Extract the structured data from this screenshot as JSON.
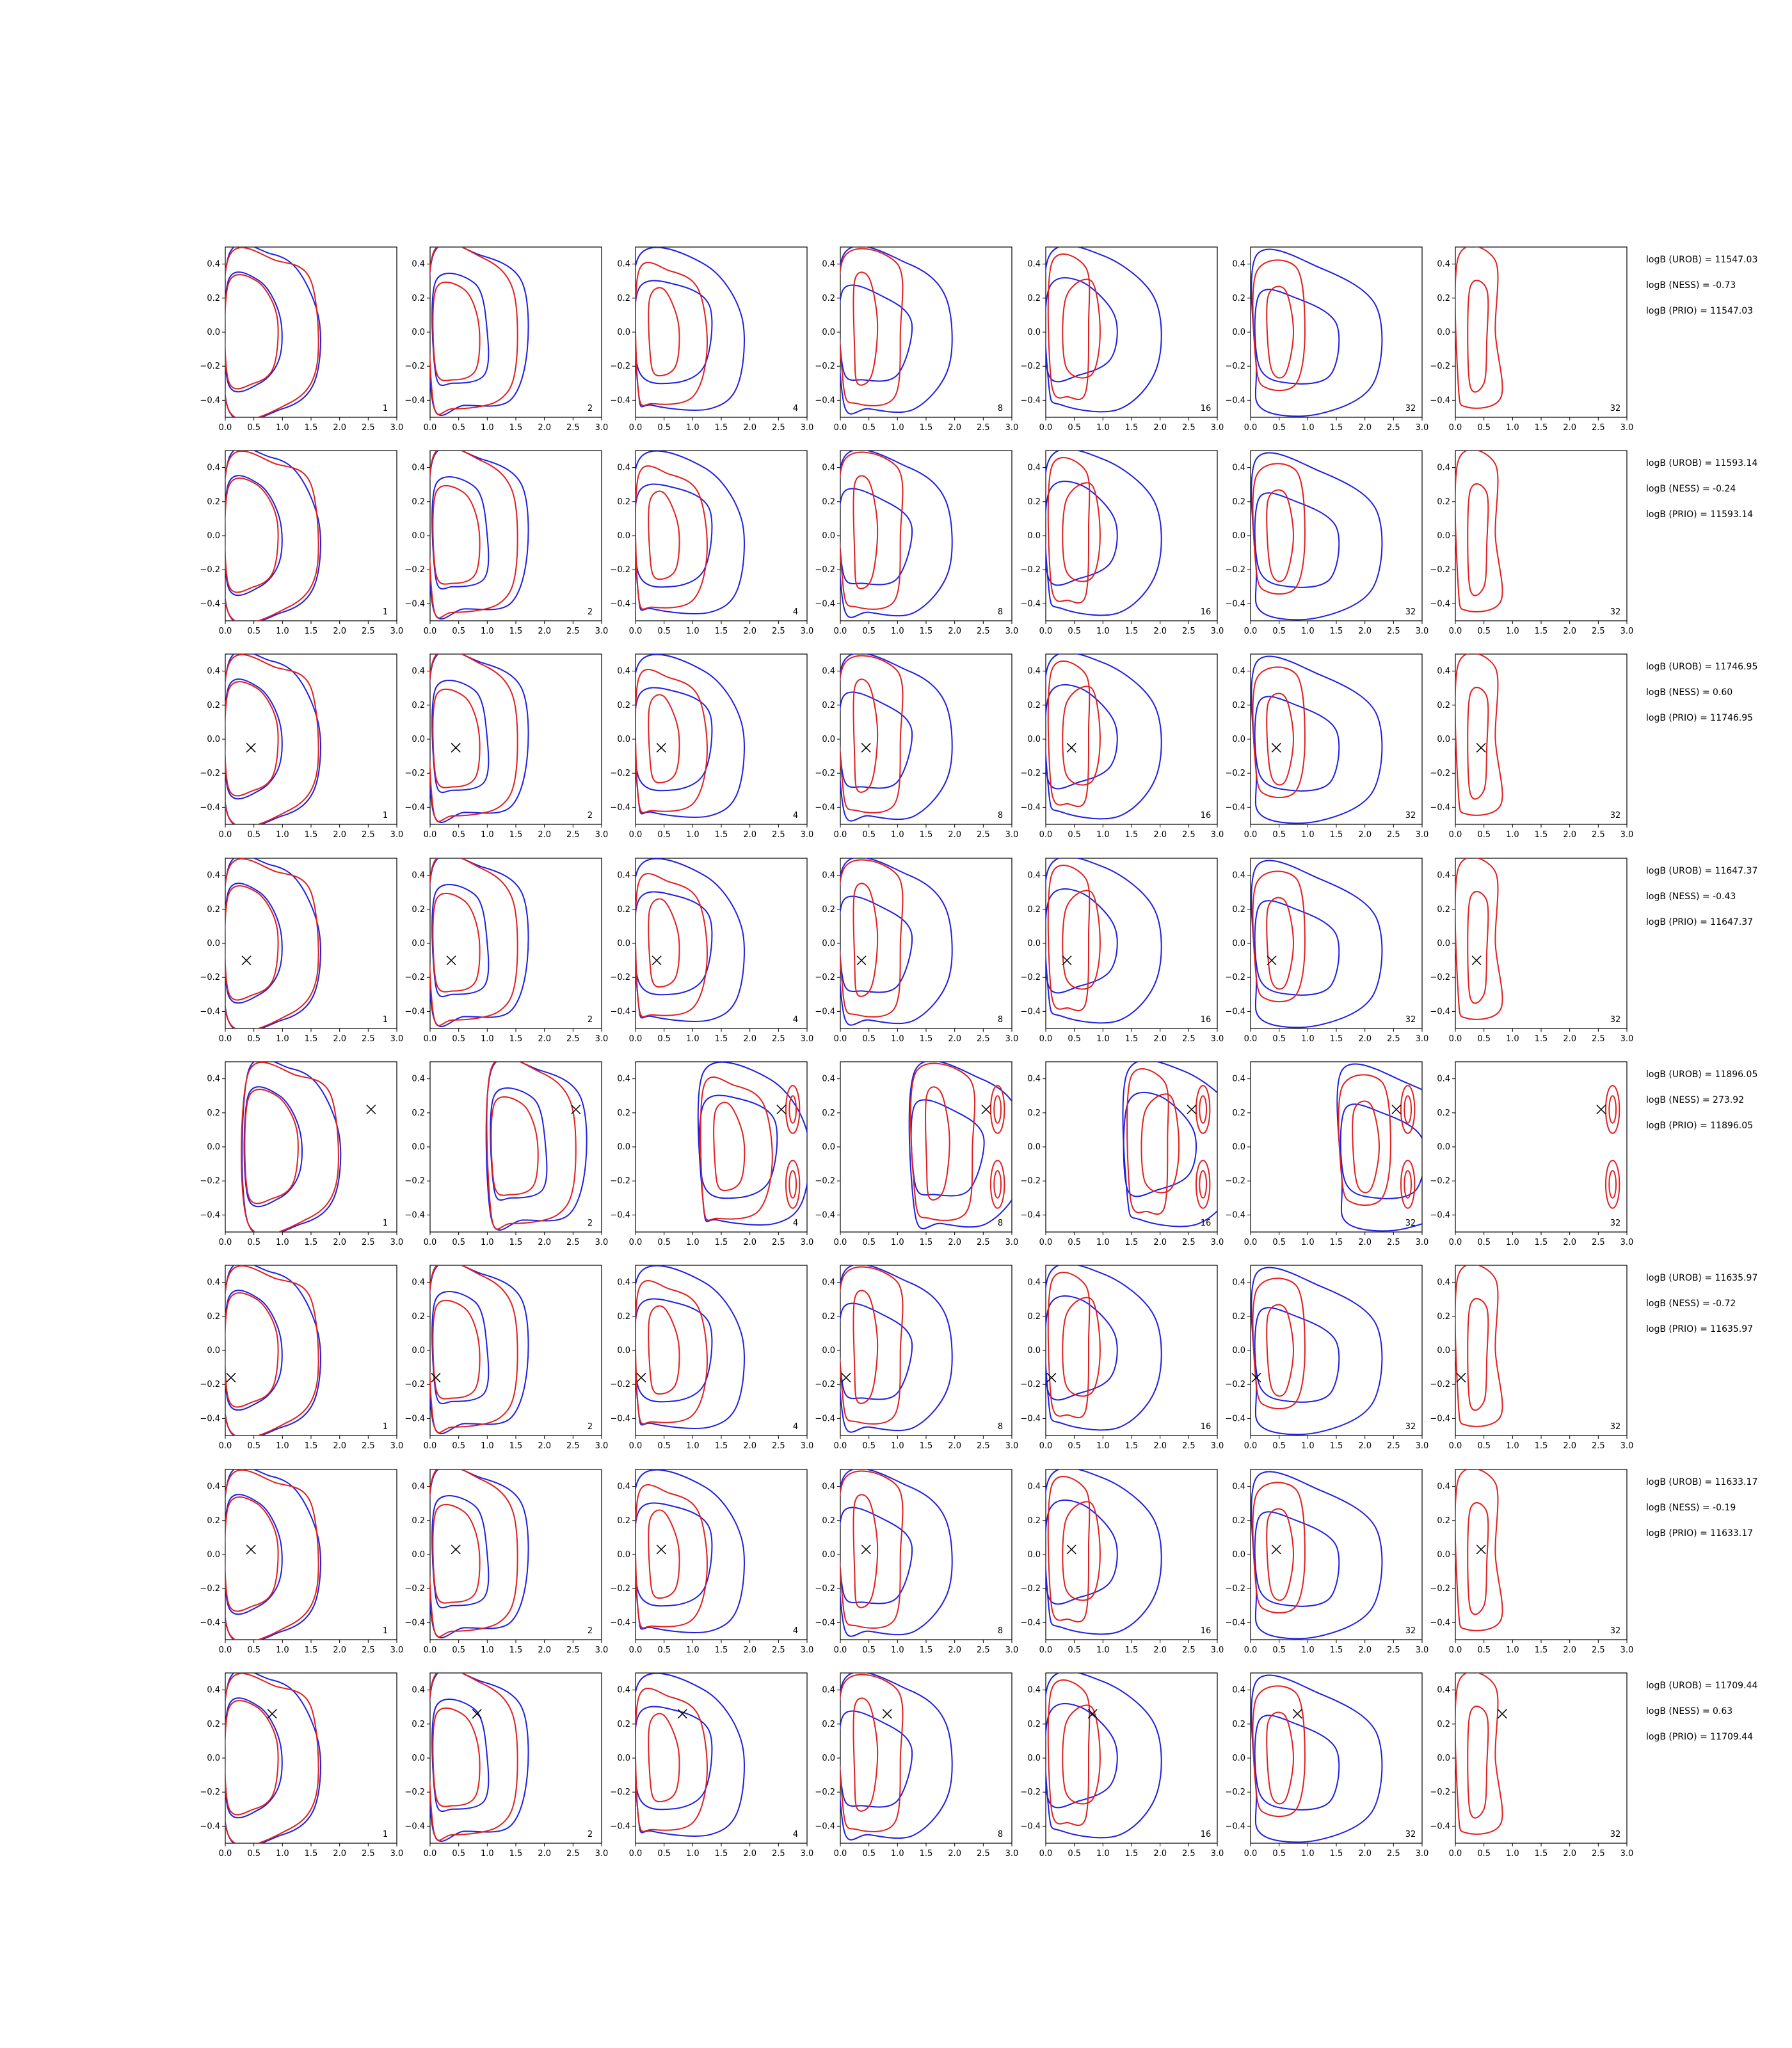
{
  "figure": {
    "rows": [
      {
        "marker": null,
        "labels": [
          "1",
          "2",
          "4",
          "8",
          "16",
          "32",
          "32"
        ],
        "notes": [
          "logB (UROB) = 11547.03",
          "logB (NESS) = -0.73",
          "logB (PRIO) = 11547.03"
        ]
      },
      {
        "marker": null,
        "labels": [
          "1",
          "2",
          "4",
          "8",
          "16",
          "32",
          "32"
        ],
        "notes": [
          "logB (UROB) = 11593.14",
          "logB (NESS) = -0.24",
          "logB (PRIO) = 11593.14"
        ]
      },
      {
        "marker": [
          0.45,
          -0.05
        ],
        "labels": [
          "1",
          "2",
          "4",
          "8",
          "16",
          "32",
          "32"
        ],
        "notes": [
          "logB (UROB) = 11746.95",
          "logB (NESS) = 0.60",
          "logB (PRIO) = 11746.95"
        ]
      },
      {
        "marker": [
          0.37,
          -0.1
        ],
        "labels": [
          "1",
          "2",
          "4",
          "8",
          "16",
          "32",
          "32"
        ],
        "notes": [
          "logB (UROB) = 11647.37",
          "logB (NESS) = -0.43",
          "logB (PRIO) = 11647.37"
        ]
      },
      {
        "marker": [
          2.55,
          0.22
        ],
        "labels": [
          "1",
          "2",
          "4",
          "8",
          "16",
          "32",
          "32"
        ],
        "notes": [
          "logB (UROB) = 11896.05",
          "logB (NESS) = 273.92",
          "logB (PRIO) = 11896.05"
        ]
      },
      {
        "marker": [
          0.1,
          -0.16
        ],
        "labels": [
          "1",
          "2",
          "4",
          "8",
          "16",
          "32",
          "32"
        ],
        "notes": [
          "logB (UROB) = 11635.97",
          "logB (NESS) = -0.72",
          "logB (PRIO) = 11635.97"
        ]
      },
      {
        "marker": [
          0.45,
          0.03
        ],
        "labels": [
          "1",
          "2",
          "4",
          "8",
          "16",
          "32",
          "32"
        ],
        "notes": [
          "logB (UROB) = 11633.17",
          "logB (NESS) = -0.19",
          "logB (PRIO) = 11633.17"
        ]
      },
      {
        "marker": [
          0.82,
          0.26
        ],
        "labels": [
          "1",
          "2",
          "4",
          "8",
          "16",
          "32",
          "32"
        ],
        "notes": [
          "logB (UROB) = 11709.44",
          "logB (NESS) = 0.63",
          "logB (PRIO) = 11709.44"
        ]
      }
    ]
  },
  "chart_data": {
    "type": "contour",
    "grid": false,
    "xlim": [
      0.0,
      3.0
    ],
    "ylim": [
      -0.5,
      0.5
    ],
    "xticks": [
      "0.0",
      "0.5",
      "1.0",
      "1.5",
      "2.0",
      "2.5",
      "3.0"
    ],
    "yticks": [
      "0.4",
      "0.2",
      "0.0",
      "−0.2",
      "−0.4"
    ],
    "xtick_values": [
      0,
      0.5,
      1,
      1.5,
      2,
      2.5,
      3
    ],
    "ytick_values": [
      0.4,
      0.2,
      0,
      -0.2,
      -0.4
    ],
    "series_colors": {
      "blue": "#1f1fe0",
      "red": "#e01f1f",
      "marker": "#000000"
    },
    "layout_rows": 8,
    "layout_cols": 7,
    "contours": [
      [
        {
          "c": "blue",
          "pts": [
            [
              0.05,
              0.44
            ],
            [
              0.8,
              0.46
            ],
            [
              1.3,
              0.35
            ],
            [
              1.65,
              0.05
            ],
            [
              1.55,
              -0.3
            ],
            [
              1.0,
              -0.45
            ],
            [
              0.05,
              -0.45
            ]
          ]
        },
        {
          "c": "blue",
          "pts": [
            [
              0.05,
              0.3
            ],
            [
              0.6,
              0.3
            ],
            [
              0.95,
              0.1
            ],
            [
              0.95,
              -0.15
            ],
            [
              0.6,
              -0.3
            ],
            [
              0.05,
              -0.3
            ]
          ]
        },
        {
          "c": "red",
          "pts": [
            [
              0.05,
              0.43
            ],
            [
              0.9,
              0.42
            ],
            [
              1.5,
              0.3
            ],
            [
              1.6,
              -0.2
            ],
            [
              1.1,
              -0.42
            ],
            [
              0.05,
              -0.45
            ]
          ]
        },
        {
          "c": "red",
          "pts": [
            [
              0.05,
              0.28
            ],
            [
              0.55,
              0.3
            ],
            [
              0.9,
              0.1
            ],
            [
              0.85,
              -0.2
            ],
            [
              0.5,
              -0.3
            ],
            [
              0.05,
              -0.28
            ]
          ]
        }
      ],
      [
        {
          "c": "blue",
          "pts": [
            [
              0.05,
              0.45
            ],
            [
              0.9,
              0.45
            ],
            [
              1.6,
              0.3
            ],
            [
              1.7,
              -0.1
            ],
            [
              1.4,
              -0.4
            ],
            [
              0.6,
              -0.43
            ],
            [
              0.05,
              -0.42
            ]
          ]
        },
        {
          "c": "blue",
          "pts": [
            [
              0.1,
              0.3
            ],
            [
              0.8,
              0.28
            ],
            [
              1.0,
              0.0
            ],
            [
              0.95,
              -0.25
            ],
            [
              0.4,
              -0.3
            ],
            [
              0.1,
              -0.25
            ]
          ]
        },
        {
          "c": "red",
          "pts": [
            [
              0.05,
              0.46
            ],
            [
              0.9,
              0.44
            ],
            [
              1.45,
              0.25
            ],
            [
              1.5,
              -0.2
            ],
            [
              1.2,
              -0.4
            ],
            [
              0.4,
              -0.45
            ],
            [
              0.05,
              -0.4
            ]
          ]
        },
        {
          "c": "red",
          "pts": [
            [
              0.1,
              0.25
            ],
            [
              0.6,
              0.25
            ],
            [
              0.85,
              0.05
            ],
            [
              0.8,
              -0.22
            ],
            [
              0.4,
              -0.28
            ],
            [
              0.1,
              -0.22
            ]
          ]
        }
      ],
      [
        {
          "c": "blue",
          "pts": [
            [
              0.05,
              0.44
            ],
            [
              1.2,
              0.4
            ],
            [
              1.85,
              0.1
            ],
            [
              1.8,
              -0.3
            ],
            [
              1.3,
              -0.45
            ],
            [
              0.3,
              -0.43
            ],
            [
              0.05,
              -0.35
            ]
          ]
        },
        {
          "c": "blue",
          "pts": [
            [
              0.05,
              0.25
            ],
            [
              0.7,
              0.28
            ],
            [
              1.3,
              0.15
            ],
            [
              1.2,
              -0.2
            ],
            [
              0.6,
              -0.3
            ],
            [
              0.05,
              -0.22
            ]
          ]
        },
        {
          "c": "red",
          "pts": [
            [
              0.05,
              0.35
            ],
            [
              0.6,
              0.36
            ],
            [
              1.1,
              0.25
            ],
            [
              1.25,
              -0.1
            ],
            [
              1.0,
              -0.38
            ],
            [
              0.3,
              -0.42
            ],
            [
              0.05,
              -0.35
            ]
          ]
        },
        {
          "c": "red",
          "pts": [
            [
              0.25,
              0.2
            ],
            [
              0.5,
              0.25
            ],
            [
              0.75,
              0.05
            ],
            [
              0.7,
              -0.2
            ],
            [
              0.35,
              -0.25
            ],
            [
              0.25,
              -0.1
            ]
          ]
        }
      ],
      [
        {
          "c": "blue",
          "pts": [
            [
              0.05,
              0.45
            ],
            [
              1.2,
              0.4
            ],
            [
              1.85,
              0.2
            ],
            [
              1.9,
              -0.2
            ],
            [
              1.3,
              -0.45
            ],
            [
              0.5,
              -0.45
            ],
            [
              0.05,
              -0.4
            ]
          ]
        },
        {
          "c": "blue",
          "pts": [
            [
              0.05,
              0.25
            ],
            [
              0.8,
              0.2
            ],
            [
              1.25,
              0.05
            ],
            [
              1.0,
              -0.25
            ],
            [
              0.4,
              -0.28
            ],
            [
              0.05,
              -0.22
            ]
          ]
        },
        {
          "c": "red",
          "pts": [
            [
              0.05,
              0.43
            ],
            [
              1.0,
              0.4
            ],
            [
              1.05,
              0.0
            ],
            [
              0.95,
              -0.38
            ],
            [
              0.3,
              -0.42
            ],
            [
              0.05,
              -0.3
            ]
          ]
        },
        {
          "c": "red",
          "pts": [
            [
              0.25,
              0.3
            ],
            [
              0.5,
              0.32
            ],
            [
              0.65,
              0.05
            ],
            [
              0.55,
              -0.25
            ],
            [
              0.3,
              -0.3
            ],
            [
              0.25,
              -0.1
            ]
          ]
        }
      ],
      [
        {
          "c": "blue",
          "pts": [
            [
              0.05,
              0.44
            ],
            [
              1.0,
              0.45
            ],
            [
              1.9,
              0.2
            ],
            [
              1.95,
              -0.2
            ],
            [
              1.3,
              -0.45
            ],
            [
              0.3,
              -0.43
            ],
            [
              0.05,
              -0.3
            ]
          ]
        },
        {
          "c": "blue",
          "pts": [
            [
              0.05,
              0.25
            ],
            [
              0.6,
              0.3
            ],
            [
              1.2,
              0.1
            ],
            [
              1.15,
              -0.15
            ],
            [
              0.6,
              -0.25
            ],
            [
              0.05,
              -0.25
            ]
          ]
        },
        {
          "c": "red",
          "pts": [
            [
              0.1,
              0.4
            ],
            [
              0.7,
              0.38
            ],
            [
              0.75,
              0.05
            ],
            [
              0.7,
              -0.35
            ],
            [
              0.4,
              -0.38
            ],
            [
              0.1,
              -0.3
            ]
          ]
        },
        {
          "c": "red",
          "pts": [
            [
              0.35,
              0.2
            ],
            [
              0.8,
              0.3
            ],
            [
              0.95,
              0.0
            ],
            [
              0.8,
              -0.25
            ],
            [
              0.35,
              -0.2
            ]
          ]
        }
      ],
      [
        {
          "c": "blue",
          "pts": [
            [
              0.1,
              0.45
            ],
            [
              1.2,
              0.38
            ],
            [
              2.2,
              0.15
            ],
            [
              2.15,
              -0.3
            ],
            [
              1.2,
              -0.48
            ],
            [
              0.2,
              -0.45
            ],
            [
              0.1,
              -0.2
            ]
          ]
        },
        {
          "c": "blue",
          "pts": [
            [
              0.15,
              0.22
            ],
            [
              0.8,
              0.2
            ],
            [
              1.5,
              0.05
            ],
            [
              1.4,
              -0.25
            ],
            [
              0.7,
              -0.3
            ],
            [
              0.15,
              -0.2
            ]
          ]
        },
        {
          "c": "red",
          "pts": [
            [
              0.1,
              0.35
            ],
            [
              0.8,
              0.38
            ],
            [
              0.95,
              0.0
            ],
            [
              0.8,
              -0.3
            ],
            [
              0.3,
              -0.33
            ],
            [
              0.1,
              -0.2
            ]
          ]
        },
        {
          "c": "red",
          "pts": [
            [
              0.3,
              0.2
            ],
            [
              0.6,
              0.25
            ],
            [
              0.75,
              0.0
            ],
            [
              0.6,
              -0.25
            ],
            [
              0.35,
              -0.2
            ]
          ]
        }
      ],
      [
        {
          "c": "red",
          "pts": [
            [
              0.05,
              0.44
            ],
            [
              0.7,
              0.42
            ],
            [
              0.7,
              0.0
            ],
            [
              0.8,
              -0.38
            ],
            [
              0.2,
              -0.44
            ],
            [
              0.05,
              -0.3
            ]
          ]
        },
        {
          "c": "red",
          "pts": [
            [
              0.25,
              0.25
            ],
            [
              0.55,
              0.25
            ],
            [
              0.55,
              -0.05
            ],
            [
              0.5,
              -0.3
            ],
            [
              0.25,
              -0.3
            ]
          ]
        }
      ]
    ],
    "markers": "see figure.rows[].marker"
  }
}
